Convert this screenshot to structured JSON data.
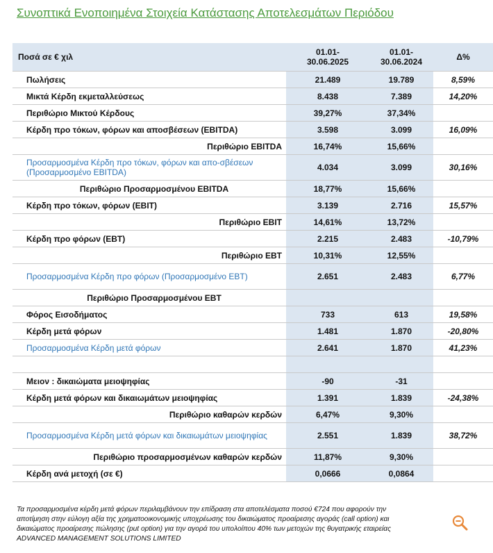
{
  "title": "Συνοπτικά Ενοποιημένα  Στοιχεία Κατάστασης Αποτελεσμάτων Περιόδου",
  "table": {
    "header": [
      "Ποσά σε € χιλ",
      "01.01-\n30.06.2025",
      "01.01-\n30.06.2024",
      "Δ%"
    ],
    "rows": [
      [
        "Πωλήσεις",
        "21.489",
        "19.789",
        "8,59%"
      ],
      [
        "Μικτά Κέρδη εκμεταλλεύσεως",
        "8.438",
        "7.389",
        "14,20%"
      ],
      [
        "Περιθώριο Μικτού Κέρδους",
        "39,27%",
        "37,34%",
        null
      ],
      [
        "Κέρδη προ τόκων, φόρων και αποσβέσεων (EBITDA)",
        "3.598",
        "3.099",
        "16,09%"
      ],
      [
        "Περιθώριο EBITDA",
        "16,74%",
        "15,66%",
        null
      ],
      [
        "Προσαρμοσμένα Κέρδη προ τόκων, φόρων και απο-σβέσεων (Προσαρμοσμένο EBITDA)",
        "4.034",
        "3.099",
        "30,16%"
      ],
      [
        "Περιθώριο  Προσαρμοσμένου EBITDA",
        "18,77%",
        "15,66%",
        null
      ],
      [
        "Κέρδη προ τόκων, φόρων (EBIT)",
        "3.139",
        "2.716",
        "15,57%"
      ],
      [
        "Περιθώριο EBIT",
        "14,61%",
        "13,72%",
        null
      ],
      [
        "Κέρδη προ φόρων (EBT)",
        "2.215",
        "2.483",
        "-10,79%"
      ],
      [
        "Περιθώριο EBT",
        "10,31%",
        "12,55%",
        null
      ],
      [
        "Προσαρμοσμένα Κέρδη προ φόρων (Προσαρμοσμένο EBT)",
        "2.651",
        "2.483",
        "6,77%"
      ],
      [
        "Περιθώριο  Προσαρμοσμένου EBT",
        null,
        null,
        null
      ],
      [
        "Φόρος Εισοδήματος",
        "733",
        "613",
        "19,58%"
      ],
      [
        "Κέρδη μετά φόρων",
        "1.481",
        "1.870",
        "-20,80%"
      ],
      [
        "Προσαρμοσμένα Κέρδη μετά φόρων",
        "2.641",
        "1.870",
        "41,23%"
      ],
      [
        null,
        null,
        null,
        null
      ],
      [
        "Μειον : δικαιώματα μειοψηφίας",
        "-90",
        "-31",
        null
      ],
      [
        "Κέρδη  μετά φόρων και δικαιωμάτων μειοψηφίας",
        "1.391",
        "1.839",
        "-24,38%"
      ],
      [
        "Περιθώριο καθαρών κερδών",
        "6,47%",
        "9,30%",
        null
      ],
      [
        "Προσαρμοσμένα Κέρδη  μετά φόρων και δικαιωμάτων μειοψηφίας",
        "2.551",
        "1.839",
        "38,72%"
      ],
      [
        "Περιθώριο προσαρμοσμένων καθαρών κερδών",
        "11,87%",
        "9,30%",
        null
      ],
      [
        "Κέρδη ανά μετοχή (σε €)",
        "0,0666",
        "0,0864",
        null
      ]
    ]
  },
  "footnote": [
    "Τα προσαρμοσμένα κέρδη μετά φόρων περιλαμβάνουν την επίδραση  στα αποτελέσματα ποσού  €724 που αφορούν την",
    "αποτίμηση στην εύλογη αξία της  χρηματοοικονομικής υποχρέωσης του δικαιώματος προαίρεσης αγοράς (call option) και",
    "δικαιώματος προαίρεσης πώλησης (put option) για την αγορά του υπολοίπου 40% των μετοχών της θυγατρικής εταιρείας",
    "ADVANCED MANAGEMENT SOLUTIONS LIMITED"
  ]
}
